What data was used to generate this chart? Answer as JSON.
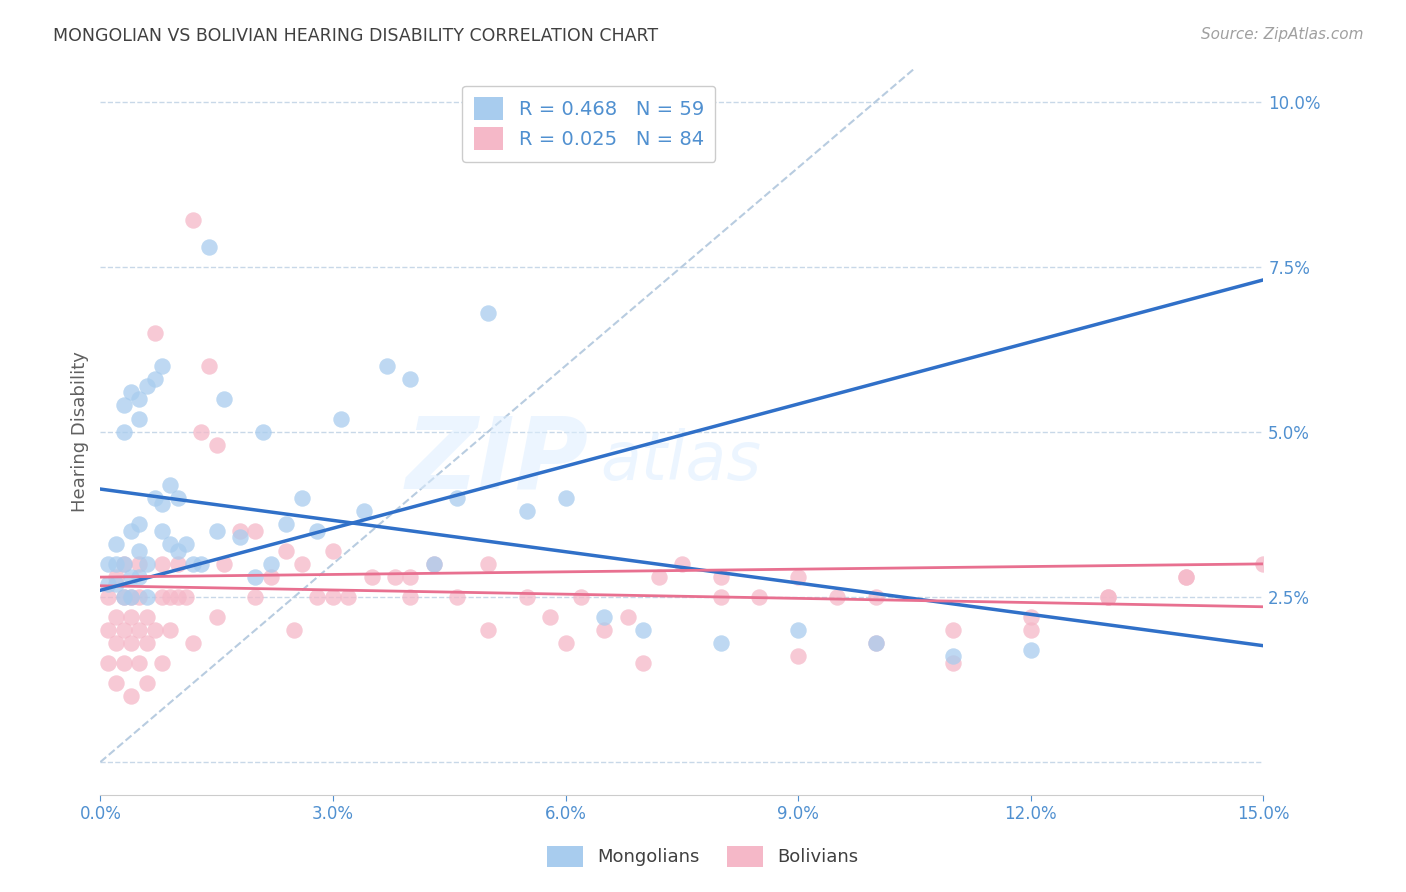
{
  "title": "MONGOLIAN VS BOLIVIAN HEARING DISABILITY CORRELATION CHART",
  "source": "Source: ZipAtlas.com",
  "ylabel": "Hearing Disability",
  "xlim": [
    0.0,
    0.15
  ],
  "ylim": [
    -0.005,
    0.105
  ],
  "xticks": [
    0.0,
    0.03,
    0.06,
    0.09,
    0.12,
    0.15
  ],
  "xticklabels": [
    "0.0%",
    "3.0%",
    "6.0%",
    "9.0%",
    "12.0%",
    "15.0%"
  ],
  "yticks": [
    0.0,
    0.025,
    0.05,
    0.075,
    0.1
  ],
  "yticklabels": [
    "",
    "2.5%",
    "5.0%",
    "7.5%",
    "10.0%"
  ],
  "mongolian_R": 0.468,
  "mongolian_N": 59,
  "bolivian_R": 0.025,
  "bolivian_N": 84,
  "mongol_color": "#a8ccee",
  "boliv_color": "#f5b8c8",
  "mongol_line_color": "#3070c8",
  "boliv_line_color": "#e87090",
  "diagonal_color": "#b8cce0",
  "watermark_zip": "ZIP",
  "watermark_atlas": "atlas",
  "mongol_x": [
    0.001,
    0.001,
    0.002,
    0.002,
    0.002,
    0.003,
    0.003,
    0.003,
    0.003,
    0.004,
    0.004,
    0.004,
    0.004,
    0.005,
    0.005,
    0.005,
    0.005,
    0.005,
    0.006,
    0.006,
    0.006,
    0.007,
    0.007,
    0.008,
    0.008,
    0.008,
    0.009,
    0.009,
    0.01,
    0.01,
    0.011,
    0.012,
    0.013,
    0.014,
    0.015,
    0.016,
    0.018,
    0.02,
    0.021,
    0.022,
    0.024,
    0.026,
    0.028,
    0.031,
    0.034,
    0.037,
    0.04,
    0.043,
    0.046,
    0.05,
    0.055,
    0.06,
    0.065,
    0.07,
    0.08,
    0.09,
    0.1,
    0.11,
    0.12
  ],
  "mongol_y": [
    0.027,
    0.03,
    0.027,
    0.03,
    0.033,
    0.025,
    0.03,
    0.05,
    0.054,
    0.025,
    0.028,
    0.035,
    0.056,
    0.028,
    0.032,
    0.036,
    0.052,
    0.055,
    0.025,
    0.03,
    0.057,
    0.04,
    0.058,
    0.035,
    0.039,
    0.06,
    0.033,
    0.042,
    0.032,
    0.04,
    0.033,
    0.03,
    0.03,
    0.078,
    0.035,
    0.055,
    0.034,
    0.028,
    0.05,
    0.03,
    0.036,
    0.04,
    0.035,
    0.052,
    0.038,
    0.06,
    0.058,
    0.03,
    0.04,
    0.068,
    0.038,
    0.04,
    0.022,
    0.02,
    0.018,
    0.02,
    0.018,
    0.016,
    0.017
  ],
  "boliv_x": [
    0.001,
    0.001,
    0.001,
    0.002,
    0.002,
    0.002,
    0.002,
    0.003,
    0.003,
    0.003,
    0.003,
    0.004,
    0.004,
    0.004,
    0.004,
    0.005,
    0.005,
    0.005,
    0.005,
    0.006,
    0.006,
    0.006,
    0.007,
    0.007,
    0.008,
    0.008,
    0.009,
    0.009,
    0.01,
    0.01,
    0.011,
    0.012,
    0.013,
    0.014,
    0.015,
    0.016,
    0.018,
    0.02,
    0.022,
    0.024,
    0.026,
    0.028,
    0.03,
    0.032,
    0.035,
    0.038,
    0.04,
    0.043,
    0.046,
    0.05,
    0.055,
    0.058,
    0.062,
    0.065,
    0.068,
    0.072,
    0.075,
    0.08,
    0.085,
    0.09,
    0.095,
    0.1,
    0.11,
    0.12,
    0.13,
    0.14,
    0.15,
    0.06,
    0.07,
    0.08,
    0.09,
    0.1,
    0.11,
    0.12,
    0.13,
    0.14,
    0.05,
    0.04,
    0.03,
    0.025,
    0.02,
    0.015,
    0.012,
    0.008
  ],
  "boliv_y": [
    0.02,
    0.025,
    0.015,
    0.022,
    0.018,
    0.028,
    0.012,
    0.02,
    0.025,
    0.015,
    0.03,
    0.022,
    0.018,
    0.025,
    0.01,
    0.02,
    0.025,
    0.015,
    0.03,
    0.022,
    0.018,
    0.012,
    0.02,
    0.065,
    0.025,
    0.03,
    0.025,
    0.02,
    0.025,
    0.03,
    0.025,
    0.082,
    0.05,
    0.06,
    0.048,
    0.03,
    0.035,
    0.035,
    0.028,
    0.032,
    0.03,
    0.025,
    0.032,
    0.025,
    0.028,
    0.028,
    0.028,
    0.03,
    0.025,
    0.03,
    0.025,
    0.022,
    0.025,
    0.02,
    0.022,
    0.028,
    0.03,
    0.028,
    0.025,
    0.028,
    0.025,
    0.025,
    0.02,
    0.022,
    0.025,
    0.028,
    0.03,
    0.018,
    0.015,
    0.025,
    0.016,
    0.018,
    0.015,
    0.02,
    0.025,
    0.028,
    0.02,
    0.025,
    0.025,
    0.02,
    0.025,
    0.022,
    0.018,
    0.015
  ]
}
